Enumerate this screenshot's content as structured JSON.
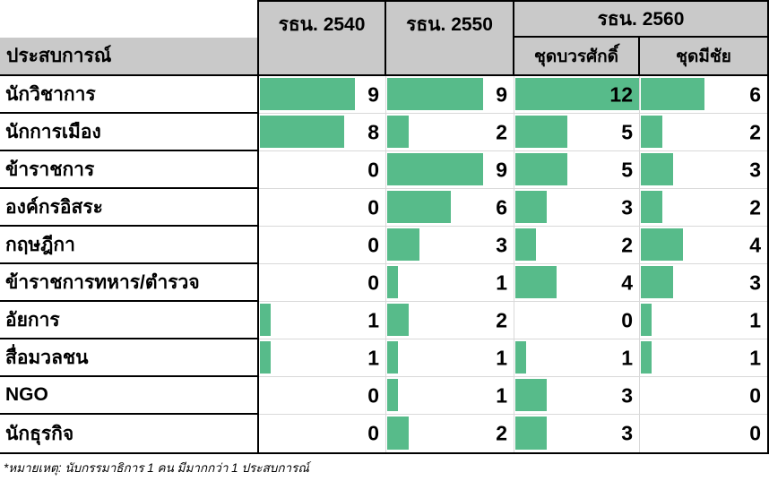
{
  "colors": {
    "bar_green": "#57bb8a",
    "header_gray": "#c9c9c9",
    "table_border": "#000000",
    "cell_border_light": "#d9d9d9"
  },
  "header": {
    "experience_label": "ประสบการณ์",
    "col_2540": "รธน. 2540",
    "col_2550": "รธน. 2550",
    "col_2560": "รธน. 2560",
    "sub_borwornsak": "ชุดบวรศักดิ์",
    "sub_meechai": "ชุดมีชัย"
  },
  "footnote": "*หมายเหตุ: นับกรรมาธิการ 1 คน มีมากกว่า 1 ประสบการณ์",
  "chart_data": {
    "type": "bar",
    "title": "",
    "xlabel": "",
    "ylabel": "ประสบการณ์",
    "max_scale": 12,
    "legend_position": "top",
    "grid": false,
    "categories": [
      "นักวิชาการ",
      "นักการเมือง",
      "ข้าราชการ",
      "องค์กรอิสระ",
      "กฤษฎีกา",
      "ข้าราชการทหาร/ตำรวจ",
      "อัยการ",
      "สื่อมวลชน",
      "NGO",
      "นักธุรกิจ"
    ],
    "series": [
      {
        "name": "รธน. 2540",
        "values": [
          9,
          8,
          0,
          0,
          0,
          0,
          1,
          1,
          0,
          0
        ]
      },
      {
        "name": "รธน. 2550",
        "values": [
          9,
          2,
          9,
          6,
          3,
          1,
          2,
          1,
          1,
          2
        ]
      },
      {
        "name": "รธน. 2560 ชุดบวรศักดิ์",
        "values": [
          12,
          5,
          5,
          3,
          2,
          4,
          0,
          1,
          3,
          3
        ]
      },
      {
        "name": "รธน. 2560 ชุดมีชัย",
        "values": [
          6,
          2,
          3,
          2,
          4,
          3,
          1,
          1,
          0,
          0
        ]
      }
    ]
  }
}
